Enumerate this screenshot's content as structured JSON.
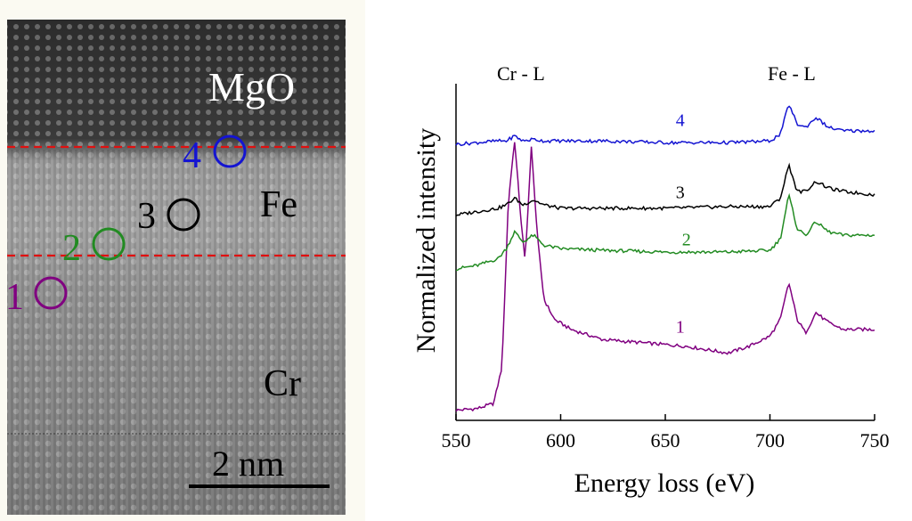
{
  "stem_image": {
    "labels": {
      "mgo": "MgO",
      "fe": "Fe",
      "cr": "Cr"
    },
    "scale_bar": "2 nm",
    "markers": [
      {
        "label": "1",
        "color": "#800080"
      },
      {
        "label": "2",
        "color": "#228b22"
      },
      {
        "label": "3",
        "color": "#000000"
      },
      {
        "label": "4",
        "color": "#1414d2"
      }
    ],
    "interface_line_color": "#e01010"
  },
  "chart_data": {
    "type": "line",
    "title": "",
    "xlabel": "Energy loss (eV)",
    "ylabel": "Normalized intensity",
    "xlim": [
      550,
      750
    ],
    "xticks": [
      550,
      600,
      650,
      700,
      750
    ],
    "ylim": [
      0,
      10
    ],
    "yticks_shown": false,
    "annotations": [
      "Cr - L",
      "Fe - L"
    ],
    "series": [
      {
        "name": "1",
        "color": "#800080",
        "x": [
          550,
          560,
          568,
          572,
          575,
          578,
          581,
          583,
          586,
          589,
          592,
          597,
          605,
          620,
          640,
          660,
          680,
          690,
          700,
          705,
          709,
          713,
          717,
          722,
          728,
          735,
          750
        ],
        "values": [
          0.3,
          0.35,
          0.5,
          1.6,
          6.5,
          8.3,
          6.0,
          4.7,
          8.1,
          5.4,
          3.6,
          3.0,
          2.7,
          2.4,
          2.3,
          2.2,
          2.0,
          2.2,
          2.5,
          3.0,
          4.1,
          3.0,
          2.6,
          3.2,
          2.9,
          2.7,
          2.7
        ]
      },
      {
        "name": "2",
        "color": "#228b22",
        "x": [
          550,
          560,
          570,
          574,
          578,
          582,
          587,
          592,
          600,
          620,
          650,
          680,
          700,
          705,
          709,
          713,
          717,
          722,
          728,
          735,
          750
        ],
        "values": [
          4.5,
          4.6,
          4.8,
          5.1,
          5.6,
          5.3,
          5.5,
          5.2,
          5.1,
          5.05,
          5.0,
          5.0,
          5.05,
          5.4,
          6.7,
          5.7,
          5.5,
          5.9,
          5.6,
          5.5,
          5.5
        ]
      },
      {
        "name": "3",
        "color": "#000000",
        "x": [
          550,
          560,
          570,
          574,
          578,
          582,
          587,
          592,
          600,
          620,
          650,
          680,
          700,
          705,
          709,
          713,
          717,
          722,
          728,
          735,
          750
        ],
        "values": [
          6.1,
          6.2,
          6.3,
          6.4,
          6.6,
          6.4,
          6.55,
          6.4,
          6.3,
          6.3,
          6.3,
          6.35,
          6.35,
          6.6,
          7.6,
          6.8,
          6.8,
          7.1,
          6.9,
          6.8,
          6.7
        ]
      },
      {
        "name": "4",
        "color": "#1414d2",
        "x": [
          550,
          560,
          570,
          574,
          578,
          582,
          587,
          592,
          600,
          620,
          650,
          680,
          700,
          705,
          709,
          713,
          717,
          722,
          728,
          735,
          750
        ],
        "values": [
          8.2,
          8.25,
          8.3,
          8.3,
          8.45,
          8.3,
          8.35,
          8.3,
          8.3,
          8.3,
          8.25,
          8.25,
          8.3,
          8.5,
          9.4,
          8.8,
          8.7,
          9.0,
          8.7,
          8.6,
          8.6
        ]
      }
    ]
  }
}
